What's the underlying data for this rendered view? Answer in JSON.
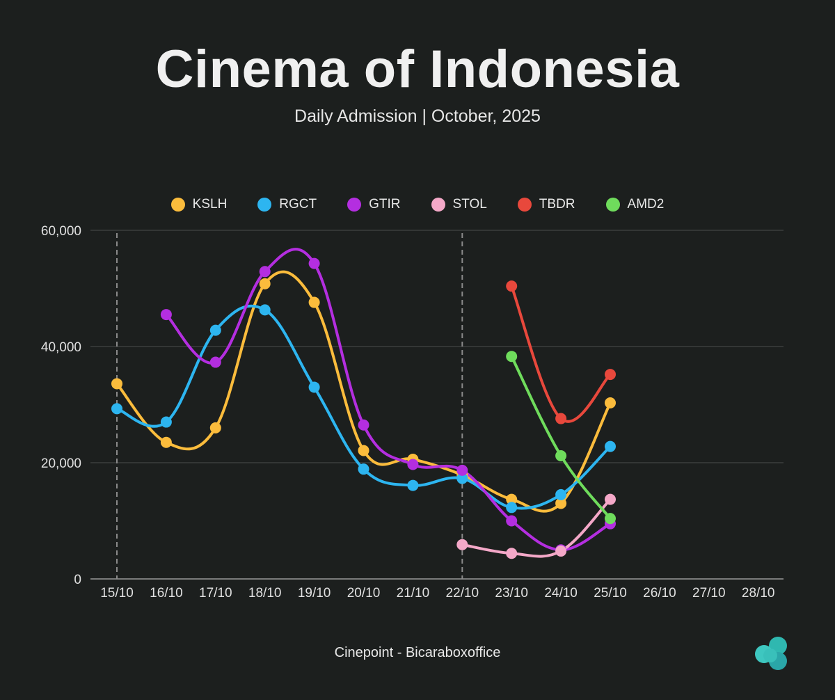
{
  "header": {
    "title": "Cinema of Indonesia",
    "subtitle": "Daily Admission | October, 2025"
  },
  "footer": {
    "source": "Cinepoint - Bicaraboxoffice"
  },
  "chart_data": {
    "type": "line",
    "title": "Cinema of Indonesia",
    "subtitle": "Daily Admission | October, 2025",
    "xlabel": "",
    "ylabel": "",
    "categories": [
      "15/10",
      "16/10",
      "17/10",
      "18/10",
      "19/10",
      "20/10",
      "21/10",
      "22/10",
      "23/10",
      "24/10",
      "25/10",
      "26/10",
      "27/10",
      "28/10"
    ],
    "ylim": [
      0,
      60000
    ],
    "yticks": [
      0,
      20000,
      40000,
      60000
    ],
    "ytick_labels": [
      "0",
      "20,000",
      "40,000",
      "60,000"
    ],
    "grid": "horizontal",
    "reference_lines": [
      "15/10",
      "22/10"
    ],
    "legend_position": "top-center",
    "series": [
      {
        "name": "KSLH",
        "color": "#fbbc3c",
        "values": [
          33600,
          23500,
          26000,
          50800,
          47600,
          22100,
          20600,
          17900,
          13700,
          13000,
          30300,
          null,
          null,
          null
        ]
      },
      {
        "name": "RGCT",
        "color": "#2db5f0",
        "values": [
          29300,
          27000,
          42800,
          46300,
          33000,
          18900,
          16100,
          17300,
          12300,
          14500,
          22800,
          null,
          null,
          null
        ]
      },
      {
        "name": "GTIR",
        "color": "#b42ee0",
        "values": [
          null,
          45500,
          37300,
          52900,
          54300,
          26500,
          19700,
          18700,
          10000,
          5000,
          9500,
          null,
          null,
          null
        ]
      },
      {
        "name": "STOL",
        "color": "#f4a8c8",
        "values": [
          null,
          null,
          null,
          null,
          null,
          null,
          null,
          5900,
          4400,
          4800,
          13700,
          null,
          null,
          null
        ]
      },
      {
        "name": "TBDR",
        "color": "#e8483c",
        "values": [
          null,
          null,
          null,
          null,
          null,
          null,
          null,
          null,
          50400,
          27600,
          35200,
          null,
          null,
          null
        ]
      },
      {
        "name": "AMD2",
        "color": "#6fdc5c",
        "values": [
          null,
          null,
          null,
          null,
          null,
          null,
          null,
          null,
          38300,
          21200,
          10400,
          null,
          null,
          null
        ]
      }
    ]
  }
}
